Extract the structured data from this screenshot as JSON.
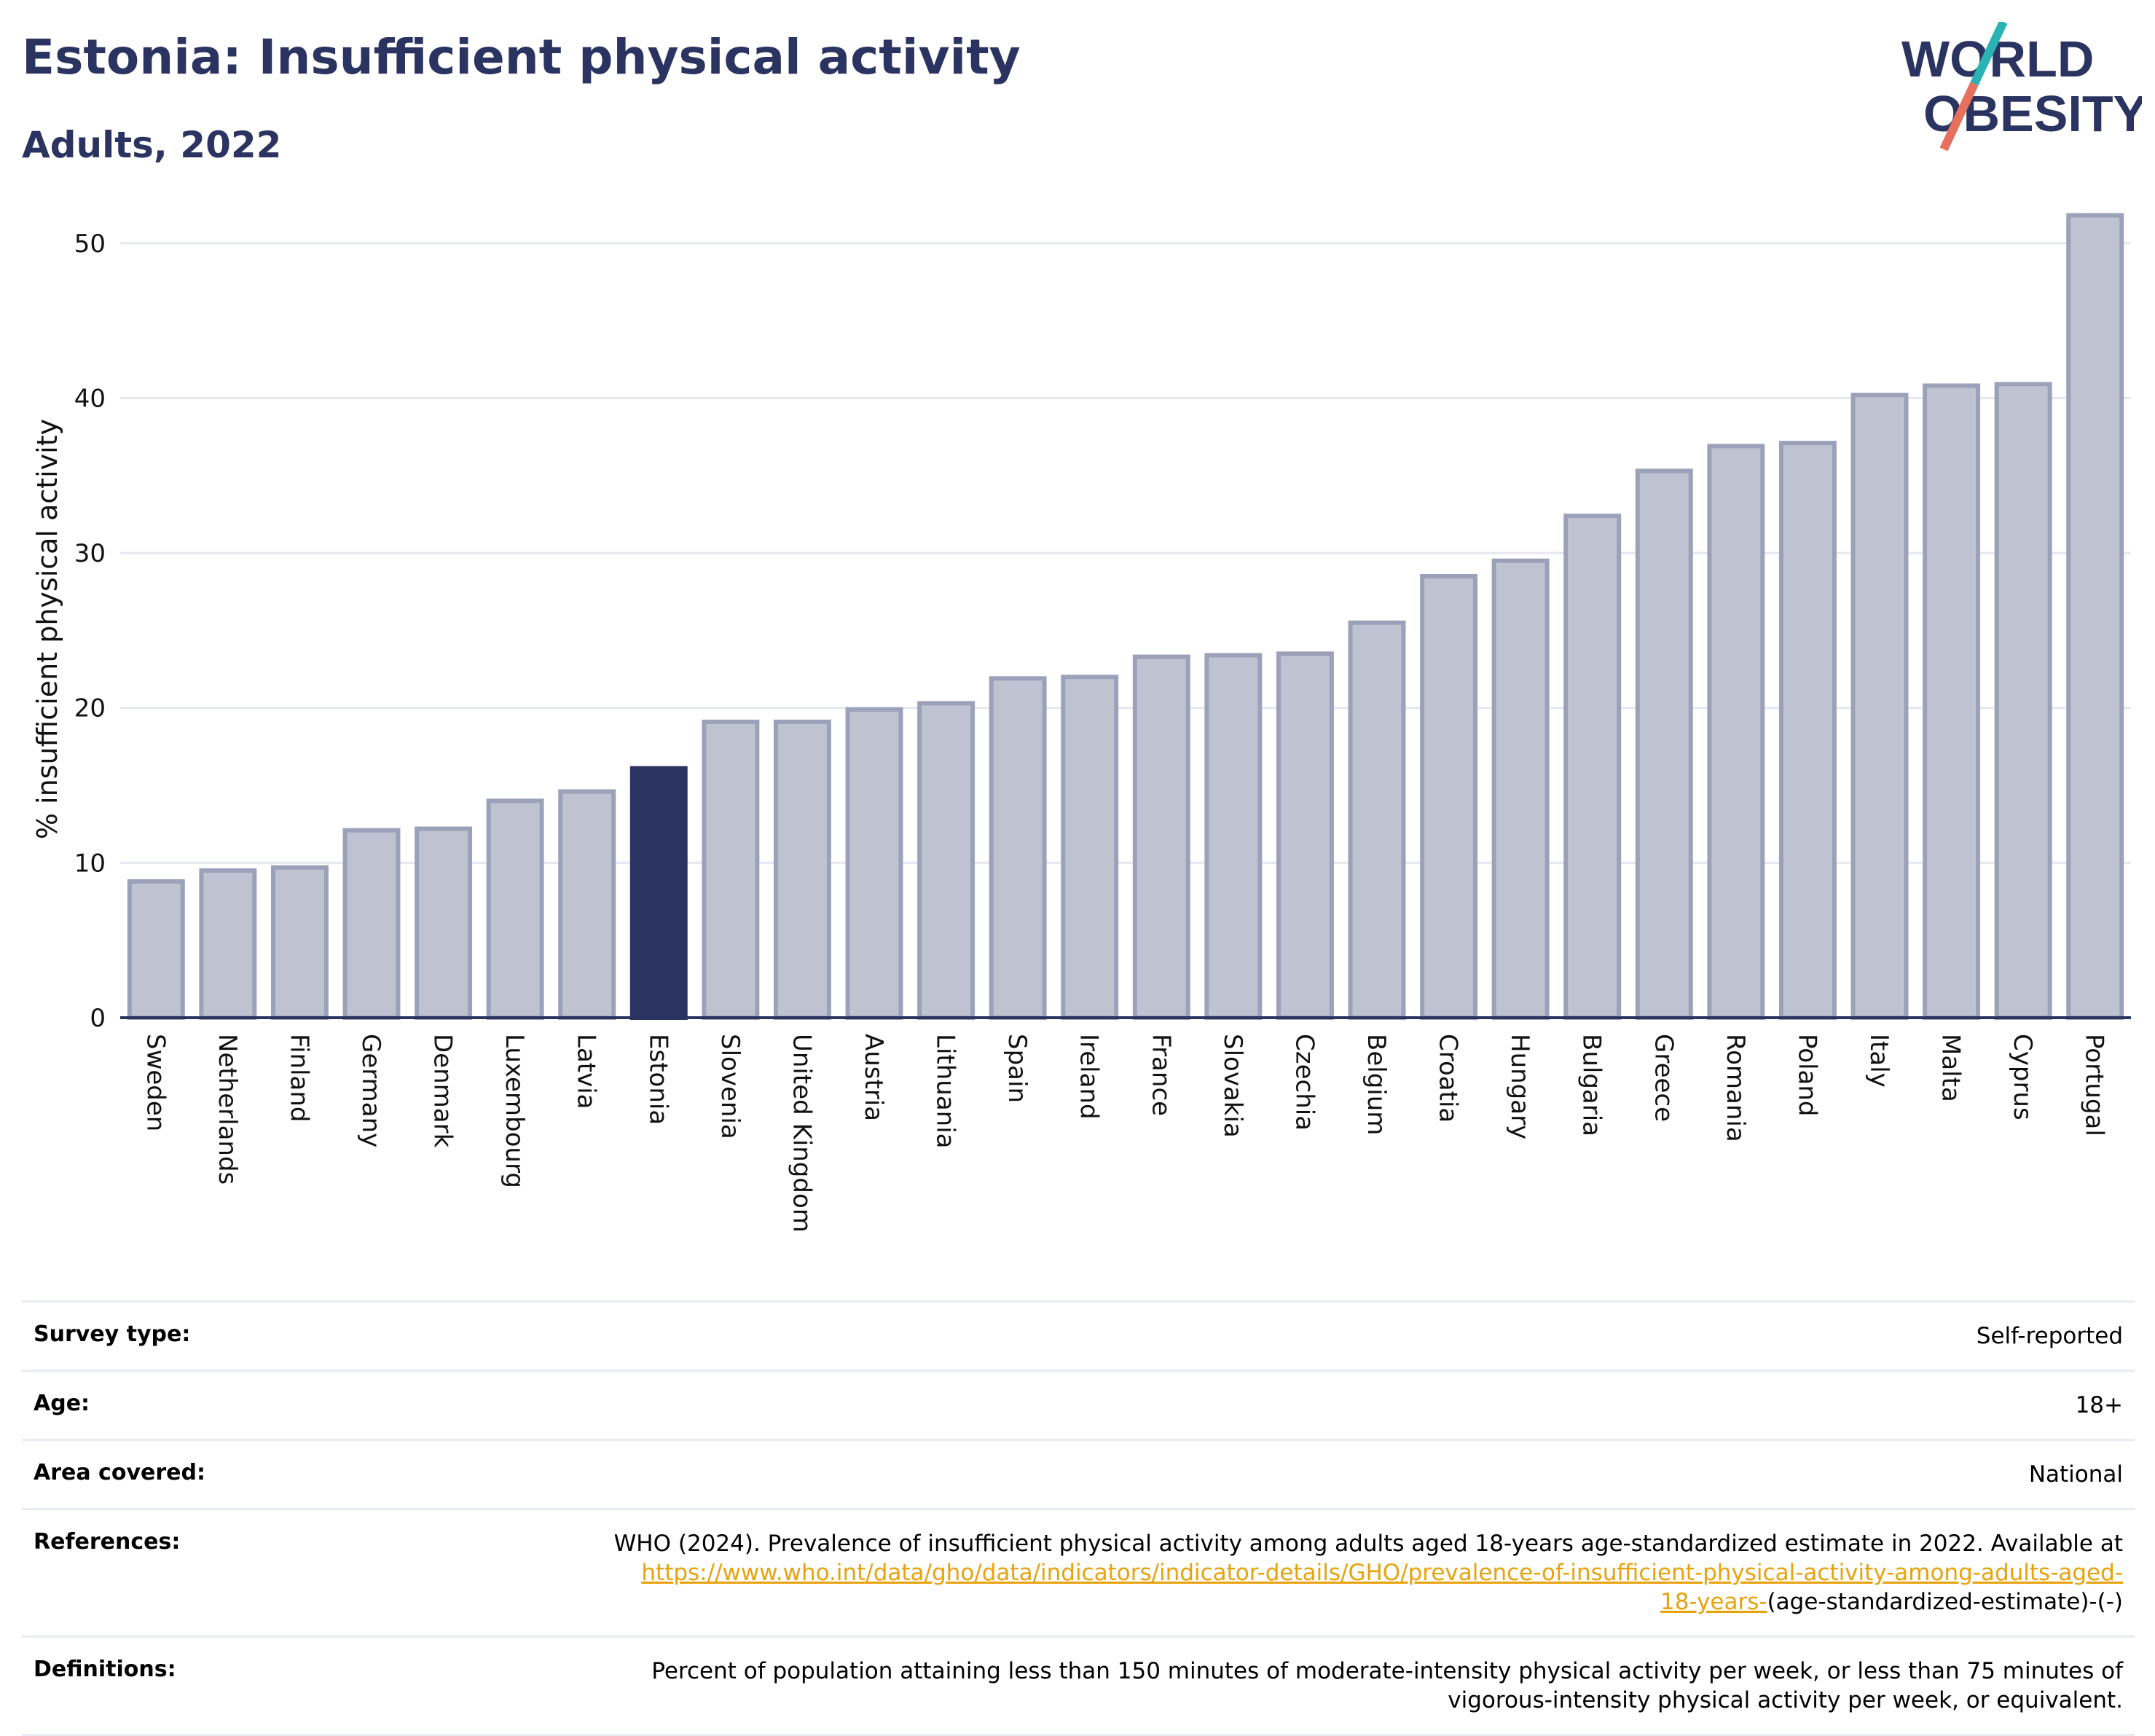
{
  "header": {
    "title": "Estonia: Insufficient physical activity",
    "subtitle": "Adults, 2022"
  },
  "logo": {
    "line1": "WORLD",
    "line2": "OBESITY",
    "colors": {
      "text": "#2b3461",
      "slash_top": "#2ab3b3",
      "slash_bottom": "#e8705e"
    }
  },
  "chart_data": {
    "type": "bar",
    "ylabel": "% insufficient physical activity",
    "ylim": [
      0,
      53
    ],
    "yticks": [
      0,
      10,
      20,
      30,
      40,
      50
    ],
    "grid": true,
    "highlight": "Estonia",
    "colors": {
      "bar": "#bfc3d1",
      "bar_border": "#9ba1b8",
      "highlight": "#2b3461",
      "grid": "#e6e8ef"
    },
    "categories": [
      "Sweden",
      "Netherlands",
      "Finland",
      "Germany",
      "Denmark",
      "Luxembourg",
      "Latvia",
      "Estonia",
      "Slovenia",
      "United Kingdom",
      "Austria",
      "Lithuania",
      "Spain",
      "Ireland",
      "France",
      "Slovakia",
      "Czechia",
      "Belgium",
      "Croatia",
      "Hungary",
      "Bulgaria",
      "Greece",
      "Romania",
      "Poland",
      "Italy",
      "Malta",
      "Cyprus",
      "Portugal"
    ],
    "values": [
      8.8,
      9.5,
      9.7,
      12.1,
      12.2,
      14.0,
      14.6,
      16.1,
      19.1,
      19.1,
      19.9,
      20.3,
      21.9,
      22.0,
      23.3,
      23.4,
      23.5,
      25.5,
      28.5,
      29.5,
      32.4,
      35.3,
      36.9,
      37.1,
      40.2,
      40.8,
      40.9,
      51.8
    ]
  },
  "info": {
    "survey_label": "Survey type:",
    "survey_value": "Self-reported",
    "age_label": "Age:",
    "age_value": "18+",
    "area_label": "Area covered:",
    "area_value": "National",
    "references_label": "References:",
    "references_text": "WHO (2024). Prevalence of insufficient physical activity among adults aged 18-years age-standardized estimate in 2022. Available at",
    "references_link_line1": "https://www.who.int/data/gho/data/indicators/indicator-details/GHO/prevalence-of-insufficient-physical-activity-among-adults-aged-",
    "references_link_line2": "18-years-",
    "references_suffix": "(age-standardized-estimate)-(-)",
    "definitions_label": "Definitions:",
    "definitions_line1": "Percent of population attaining less than 150 minutes of moderate-intensity physical activity per week, or less than 75 minutes of",
    "definitions_line2": "vigorous-intensity physical activity per week, or equivalent."
  }
}
